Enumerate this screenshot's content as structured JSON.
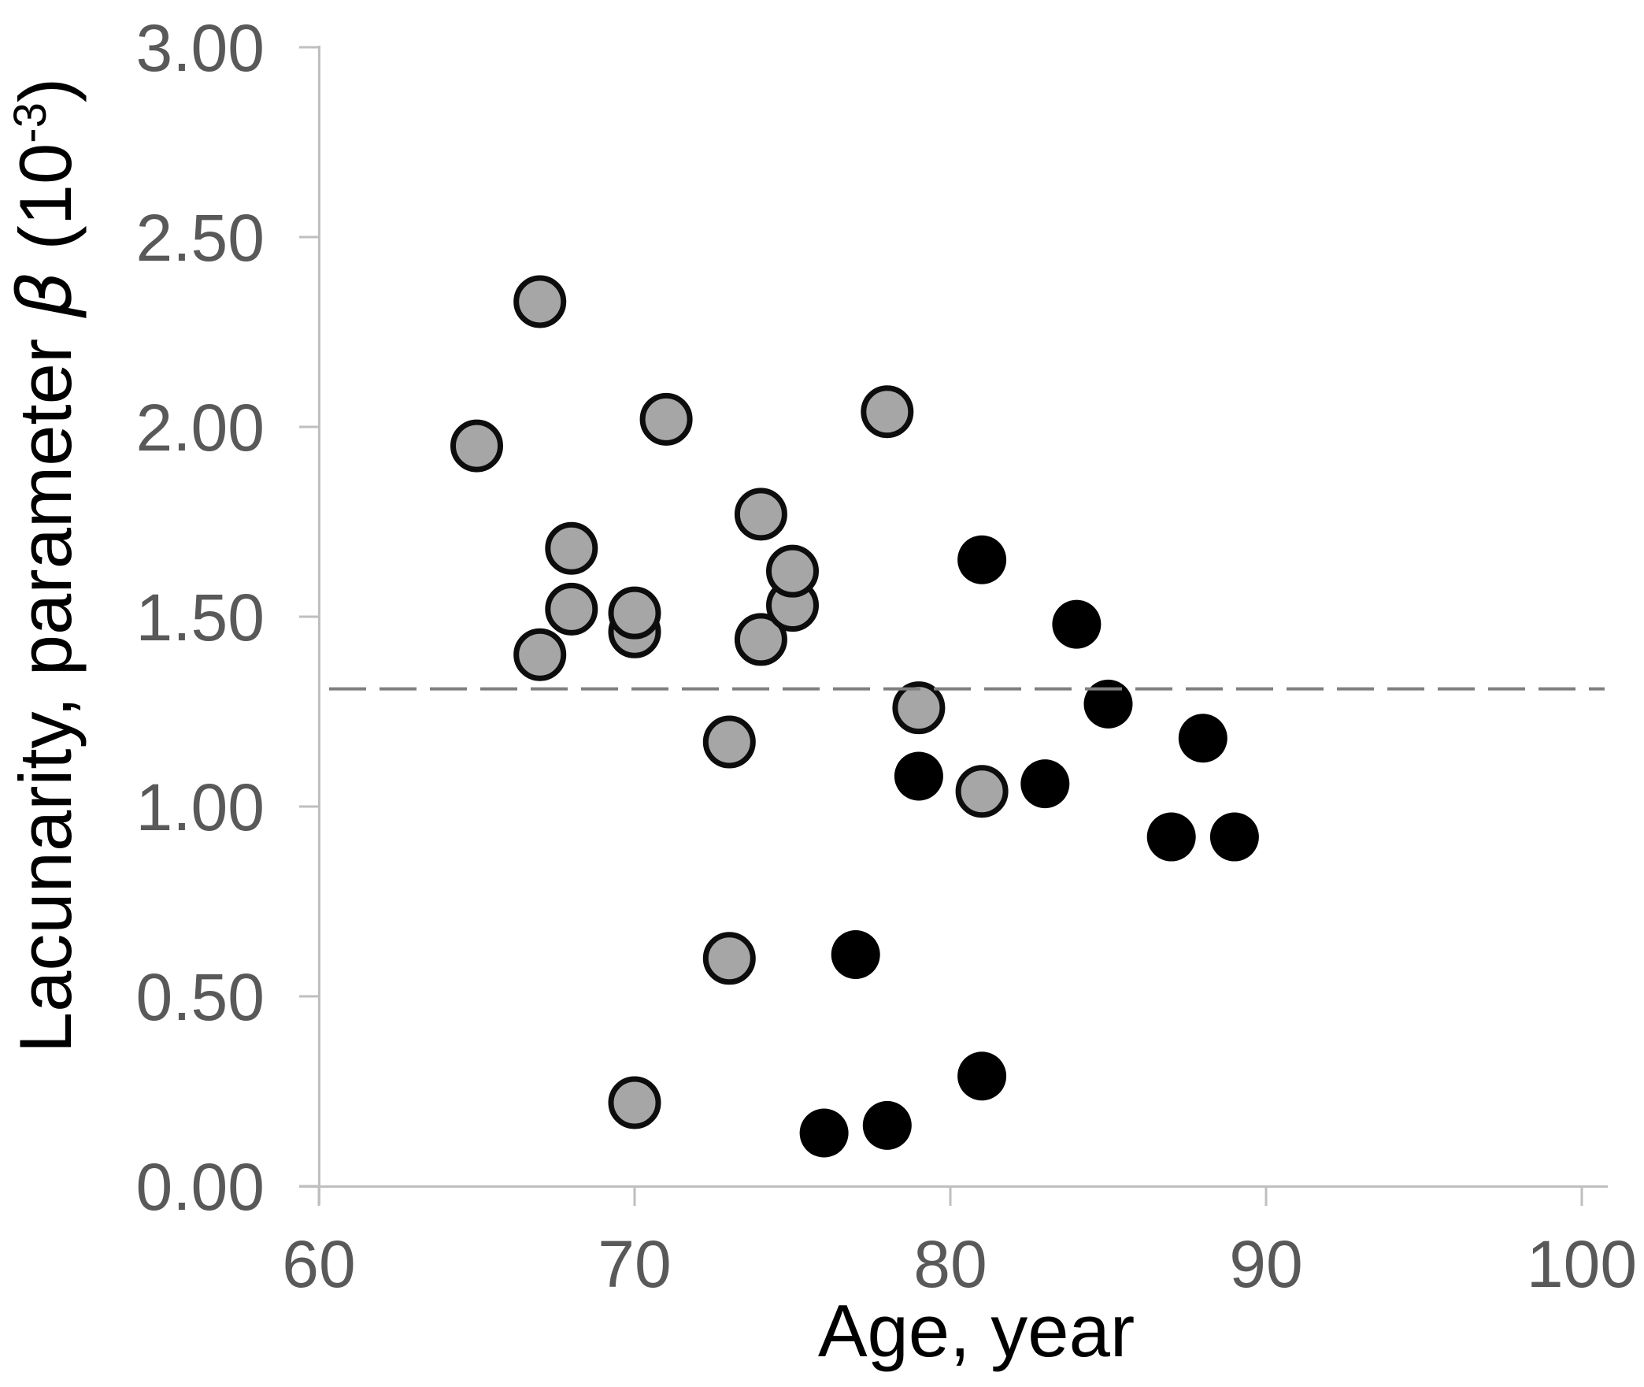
{
  "chart_data": {
    "type": "scatter",
    "title": "",
    "xlabel": "Age, year",
    "ylabel_text": "Lacunarity, parameter β (10-3)",
    "ylabel_parts": {
      "prefix": "Lacunarity, parameter ",
      "beta": "β",
      "paren_open": " (10",
      "superscript": "-3",
      "paren_close": ")"
    },
    "x_axis": {
      "min": 60,
      "max": 100,
      "ticks": [
        {
          "value": 60,
          "label": "60"
        },
        {
          "value": 70,
          "label": "70"
        },
        {
          "value": 80,
          "label": "80"
        },
        {
          "value": 90,
          "label": "90"
        },
        {
          "value": 100,
          "label": "100"
        }
      ]
    },
    "y_axis": {
      "min": 0.0,
      "max": 3.0,
      "ticks": [
        {
          "value": 3.0,
          "label": "3.00"
        },
        {
          "value": 2.5,
          "label": "2.50"
        },
        {
          "value": 2.0,
          "label": "2.00"
        },
        {
          "value": 1.5,
          "label": "1.50"
        },
        {
          "value": 1.0,
          "label": "1.00"
        },
        {
          "value": 0.5,
          "label": "0.50"
        },
        {
          "value": 0.0,
          "label": "0.00"
        }
      ]
    },
    "grid": "off",
    "legend": "none",
    "reference_line": {
      "value": 1.31,
      "style": "dashed",
      "color": "#7f7f7f"
    },
    "series": [
      {
        "name": "gray-circles",
        "marker": "circle",
        "fill": "#a6a6a6",
        "stroke": "#0d0d0d",
        "stroke_width": 7,
        "points": [
          [
            65,
            1.95
          ],
          [
            67,
            2.33
          ],
          [
            67,
            1.4
          ],
          [
            68,
            1.68
          ],
          [
            68,
            1.52
          ],
          [
            70,
            1.46
          ],
          [
            70,
            1.51
          ],
          [
            70,
            0.22
          ],
          [
            71,
            2.02
          ],
          [
            73,
            1.17
          ],
          [
            73,
            0.6
          ],
          [
            74,
            1.77
          ],
          [
            74,
            1.44
          ],
          [
            75,
            1.53
          ],
          [
            75,
            1.62
          ],
          [
            78,
            2.04
          ],
          [
            79,
            1.26
          ],
          [
            81,
            1.04
          ]
        ]
      },
      {
        "name": "black-circles",
        "marker": "circle",
        "fill": "#000000",
        "stroke": "#000000",
        "stroke_width": 0,
        "points": [
          [
            76,
            0.14
          ],
          [
            77,
            0.61
          ],
          [
            78,
            0.16
          ],
          [
            79,
            1.08
          ],
          [
            81,
            1.65
          ],
          [
            81,
            0.29
          ],
          [
            83,
            1.06
          ],
          [
            84,
            1.48
          ],
          [
            85,
            1.27
          ],
          [
            87,
            0.92
          ],
          [
            88,
            1.18
          ],
          [
            89,
            0.92
          ]
        ]
      }
    ]
  },
  "colors": {
    "axis_line": "#bfbfbf",
    "tick_label": "#595959",
    "axis_title": "#000000",
    "background": "#ffffff"
  }
}
